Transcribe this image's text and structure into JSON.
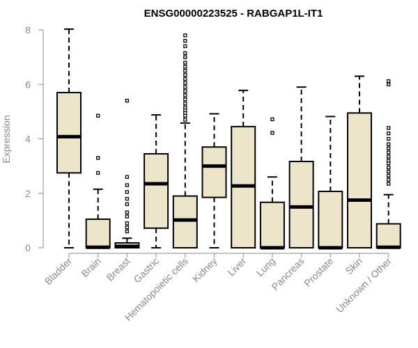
{
  "chart_data": {
    "type": "box",
    "title": "ENSG00000223525 - RABGAP1L-IT1",
    "xlabel": "",
    "ylabel": "Expression",
    "ylim": [
      0,
      8
    ],
    "yticks": [
      0,
      2,
      4,
      6,
      8
    ],
    "box_fill": "#ede5c9",
    "axis_color": "#888888",
    "categories": [
      "Bladder",
      "Brain",
      "Breast",
      "Gastric",
      "Hematopoietic cells",
      "Kidney",
      "Liver",
      "Lung",
      "Pancreas",
      "Prostate",
      "Skin",
      "Unknown / Other"
    ],
    "boxes": [
      {
        "name": "Bladder",
        "whisker_low": 0.0,
        "q1": 2.75,
        "median": 4.08,
        "q3": 5.7,
        "whisker_high": 8.03,
        "outliers": []
      },
      {
        "name": "Brain",
        "whisker_low": 0.0,
        "q1": 0.0,
        "median": 0.02,
        "q3": 1.05,
        "whisker_high": 2.15,
        "outliers": [
          2.75,
          3.3,
          4.85
        ]
      },
      {
        "name": "Breast",
        "whisker_low": 0.0,
        "q1": 0.0,
        "median": 0.05,
        "q3": 0.18,
        "whisker_high": 0.35,
        "outliers": [
          0.6,
          0.75,
          0.9,
          1.15,
          1.3,
          1.6,
          1.8,
          2.05,
          2.3,
          2.6,
          5.4
        ]
      },
      {
        "name": "Gastric",
        "whisker_low": 0.0,
        "q1": 0.72,
        "median": 2.35,
        "q3": 3.45,
        "whisker_high": 4.88,
        "outliers": []
      },
      {
        "name": "Hematopoietic cells",
        "whisker_low": 0.0,
        "q1": 0.0,
        "median": 1.02,
        "q3": 1.9,
        "whisker_high": 4.58,
        "outliers": [
          4.7,
          4.85,
          4.95,
          5.05,
          5.15,
          5.3,
          5.45,
          5.6,
          5.75,
          5.9,
          6.05,
          6.2,
          6.35,
          6.5,
          6.65,
          6.8,
          7.0,
          7.15,
          7.4,
          7.6,
          7.8
        ]
      },
      {
        "name": "Kidney",
        "whisker_low": 0.0,
        "q1": 1.85,
        "median": 3.0,
        "q3": 3.7,
        "whisker_high": 4.92,
        "outliers": []
      },
      {
        "name": "Liver",
        "whisker_low": 0.0,
        "q1": 0.0,
        "median": 2.27,
        "q3": 4.45,
        "whisker_high": 5.78,
        "outliers": []
      },
      {
        "name": "Lung",
        "whisker_low": 0.0,
        "q1": 0.0,
        "median": 0.0,
        "q3": 1.67,
        "whisker_high": 2.6,
        "outliers": [
          4.22,
          4.72
        ]
      },
      {
        "name": "Pancreas",
        "whisker_low": 0.0,
        "q1": 0.0,
        "median": 1.5,
        "q3": 3.17,
        "whisker_high": 5.9,
        "outliers": []
      },
      {
        "name": "Prostate",
        "whisker_low": 0.0,
        "q1": 0.0,
        "median": 0.0,
        "q3": 2.07,
        "whisker_high": 4.82,
        "outliers": []
      },
      {
        "name": "Skin",
        "whisker_low": 0.0,
        "q1": 0.0,
        "median": 1.75,
        "q3": 4.95,
        "whisker_high": 6.3,
        "outliers": []
      },
      {
        "name": "Unknown / Other",
        "whisker_low": 0.0,
        "q1": 0.0,
        "median": 0.02,
        "q3": 0.88,
        "whisker_high": 1.95,
        "outliers": [
          2.35,
          2.5,
          2.65,
          2.8,
          2.95,
          3.1,
          3.2,
          3.35,
          3.5,
          3.65,
          3.8,
          4.0,
          4.2,
          4.4,
          6.0,
          6.12
        ]
      }
    ]
  }
}
